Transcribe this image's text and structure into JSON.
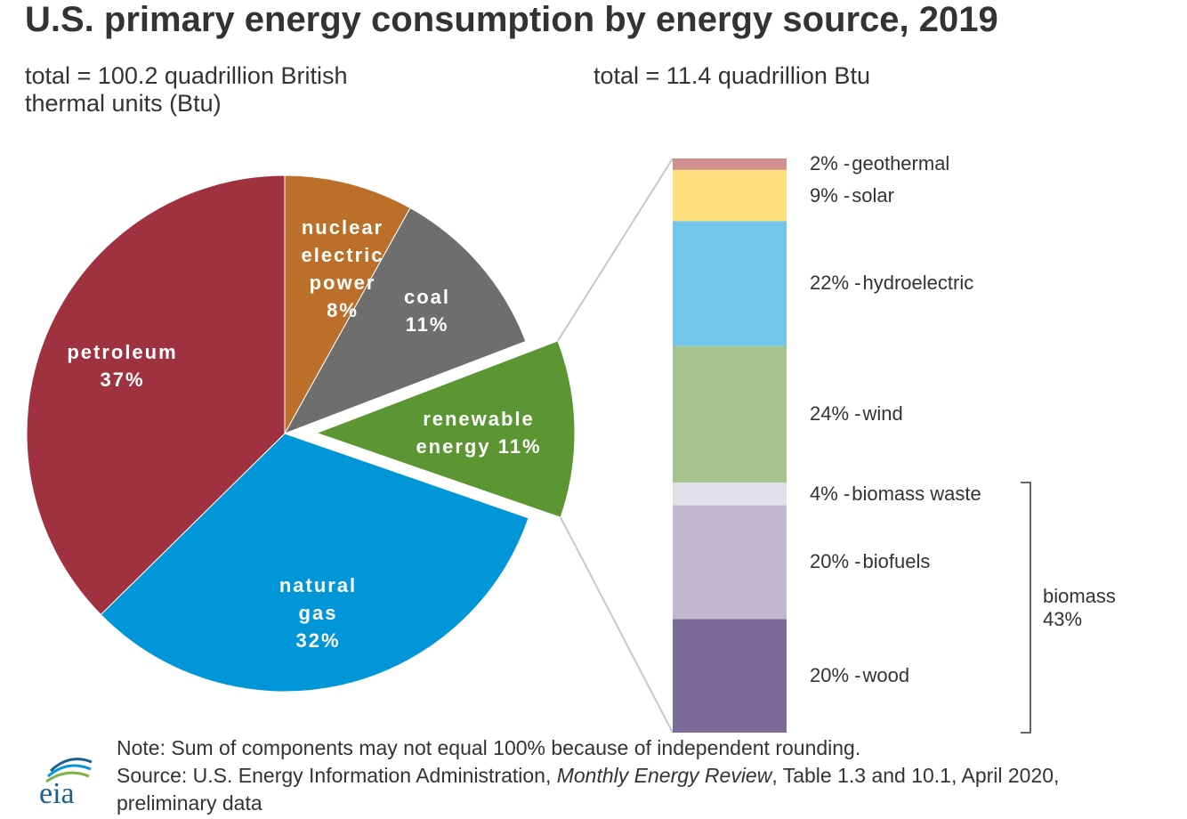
{
  "title": "U.S. primary energy consumption by energy source, 2019",
  "note": "Note: Sum of components may not equal 100% because of independent rounding.",
  "source": [
    "Source: U.S. Energy Information Administration, ",
    "Monthly Energy Review",
    ", Table 1.3 and 10.1, April 2020, preliminary data"
  ],
  "logo": "eia",
  "chart_data": [
    {
      "type": "pie",
      "subtitle": "total = 100.2 quadrillion British thermal units (Btu)",
      "categories": [
        "nuclear electric power",
        "coal",
        "renewable energy",
        "natural gas",
        "petroleum"
      ],
      "values": [
        8,
        11,
        11,
        32,
        37
      ],
      "value_labels": [
        "8%",
        "11%",
        "11%",
        "32%",
        "37%"
      ],
      "colors": [
        "#bb6f28",
        "#6e6e6e",
        "#5b9632",
        "#0096d8",
        "#a0323f"
      ],
      "exploded": "renewable energy"
    },
    {
      "type": "stacked-column",
      "subtitle": "total = 11.4 quadrillion Btu",
      "categories": [
        "wood",
        "biofuels",
        "biomass waste",
        "wind",
        "hydroelectric",
        "solar",
        "geothermal"
      ],
      "values": [
        20,
        20,
        4,
        24,
        22,
        9,
        2
      ],
      "value_labels": [
        "20%",
        "20%",
        "4%",
        "24%",
        "22%",
        "9%",
        "2%"
      ],
      "separator": "-",
      "colors": [
        "#7c6a98",
        "#c1b8d0",
        "#e2e0ea",
        "#a5c48d",
        "#73c5ea",
        "#ffde7d",
        "#d19090"
      ],
      "groups": [
        {
          "name": "biomass",
          "categories": [
            "wood",
            "biofuels",
            "biomass waste"
          ],
          "value": 43,
          "value_label": "43%"
        }
      ]
    }
  ]
}
